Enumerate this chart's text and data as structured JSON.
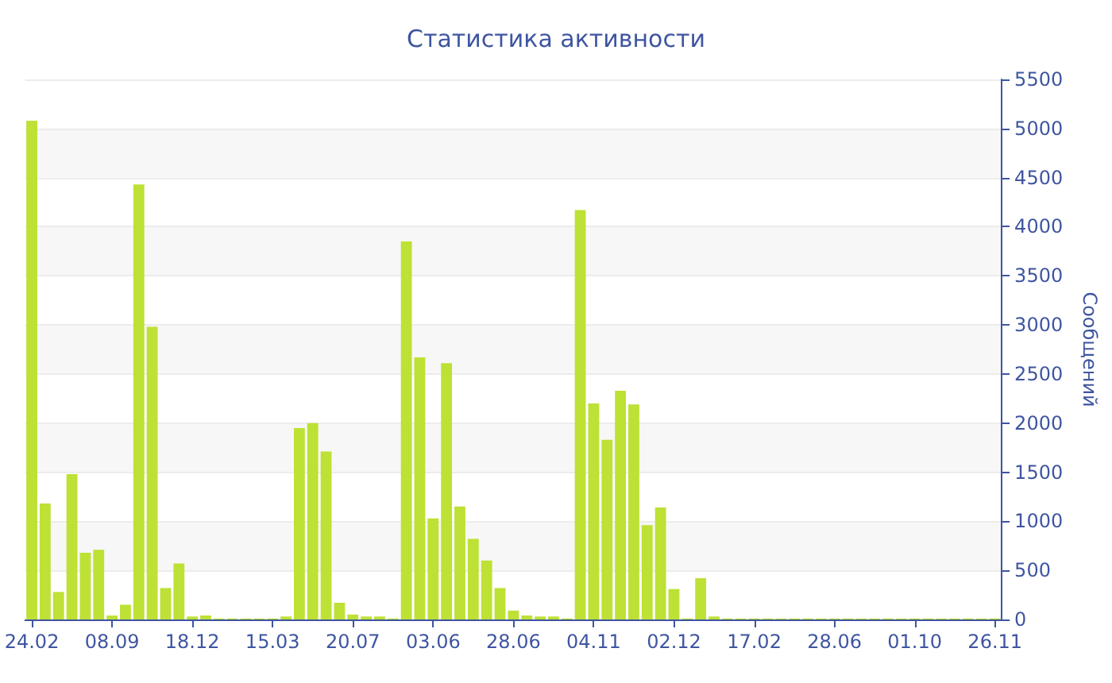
{
  "chart_data": {
    "type": "bar",
    "title": "Статистика активности",
    "ylabel": "Сообщений",
    "categories": [
      "24.02",
      null,
      null,
      null,
      null,
      null,
      "08.09",
      null,
      null,
      null,
      null,
      null,
      "18.12",
      null,
      null,
      null,
      null,
      null,
      "15.03",
      null,
      null,
      null,
      null,
      null,
      "20.07",
      null,
      null,
      null,
      null,
      null,
      "03.06",
      null,
      null,
      null,
      null,
      null,
      "28.06",
      null,
      null,
      null,
      null,
      null,
      "04.11",
      null,
      null,
      null,
      null,
      null,
      "02.12",
      null,
      null,
      null,
      null,
      null,
      "17.02",
      null,
      null,
      null,
      null,
      null,
      "28.06",
      null,
      null,
      null,
      null,
      null,
      "01.10",
      null,
      null,
      null,
      null,
      null,
      "26.11"
    ],
    "values": [
      5080,
      1180,
      280,
      1480,
      680,
      710,
      40,
      150,
      4430,
      2980,
      320,
      570,
      30,
      40,
      10,
      10,
      10,
      10,
      10,
      30,
      1950,
      2000,
      1710,
      170,
      50,
      30,
      30,
      10,
      3850,
      2670,
      1030,
      2610,
      1150,
      820,
      600,
      320,
      90,
      40,
      30,
      30,
      10,
      4170,
      2200,
      1830,
      2330,
      2190,
      960,
      1140,
      310,
      10,
      420,
      30,
      10,
      10,
      10,
      10,
      10,
      10,
      10,
      10,
      10,
      10,
      10,
      10,
      10,
      10,
      10,
      10,
      10,
      10,
      10,
      10,
      10
    ],
    "color": "#bde134",
    "ylim": [
      0,
      5500
    ],
    "yticks": [
      0,
      500,
      1000,
      1500,
      2000,
      2500,
      3000,
      3500,
      4000,
      4500,
      5000,
      5500
    ],
    "grid": "y"
  }
}
